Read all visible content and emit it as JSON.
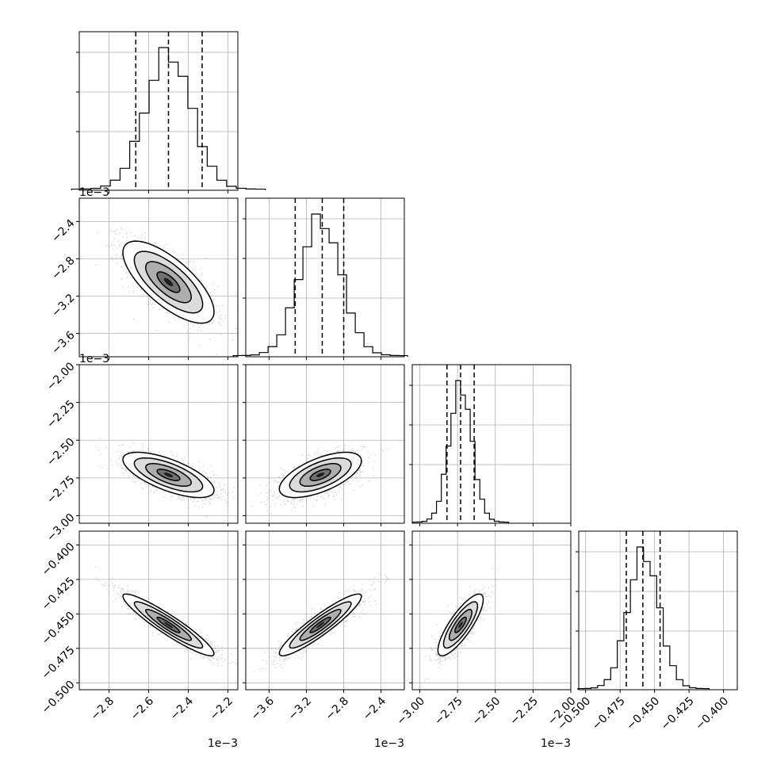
{
  "chart_data": {
    "type": "corner",
    "n_params": 4,
    "grid": true,
    "axes_ranges": [
      [
        -2.95,
        -2.15
      ],
      [
        -3.85,
        -2.15
      ],
      [
        -3.05,
        -2.0
      ],
      [
        -0.505,
        -0.39
      ]
    ],
    "ticks": [
      {
        "values": [
          -2.8,
          -2.6,
          -2.4,
          -2.2
        ],
        "labels": [
          "−2.8",
          "−2.6",
          "−2.4",
          "−2.2"
        ],
        "offset": "1e−3"
      },
      {
        "values": [
          -3.6,
          -3.2,
          -2.8,
          -2.4
        ],
        "labels": [
          "−3.6",
          "−3.2",
          "−2.8",
          "−2.4"
        ],
        "offset": "1e−3"
      },
      {
        "values": [
          -3.0,
          -2.75,
          -2.5,
          -2.25,
          -2.0
        ],
        "labels": [
          "−3.00",
          "−2.75",
          "−2.50",
          "−2.25",
          "−2.00"
        ],
        "offset": "1e−3"
      },
      {
        "values": [
          -0.5,
          -0.475,
          -0.45,
          -0.425,
          -0.4
        ],
        "labels": [
          "−0.500",
          "−0.475",
          "−0.450",
          "−0.425",
          "−0.400"
        ],
        "offset": ""
      }
    ],
    "means": [
      -2.5,
      -3.05,
      -2.73,
      -0.458
    ],
    "stds": [
      0.115,
      0.22,
      0.075,
      0.0112
    ],
    "quantiles": [
      [
        -2.665,
        -2.5,
        -2.33
      ],
      [
        -3.32,
        -3.03,
        -2.8
      ],
      [
        -2.82,
        -2.73,
        -2.64
      ],
      [
        -0.4705,
        -0.4585,
        -0.446
      ]
    ],
    "correlations": [
      {
        "i": 1,
        "j": 0,
        "rho": -0.72
      },
      {
        "i": 2,
        "j": 0,
        "rho": -0.68
      },
      {
        "i": 2,
        "j": 1,
        "rho": 0.62
      },
      {
        "i": 3,
        "j": 0,
        "rho": -0.93
      },
      {
        "i": 3,
        "j": 1,
        "rho": 0.92
      },
      {
        "i": 3,
        "j": 2,
        "rho": 0.82
      }
    ]
  }
}
